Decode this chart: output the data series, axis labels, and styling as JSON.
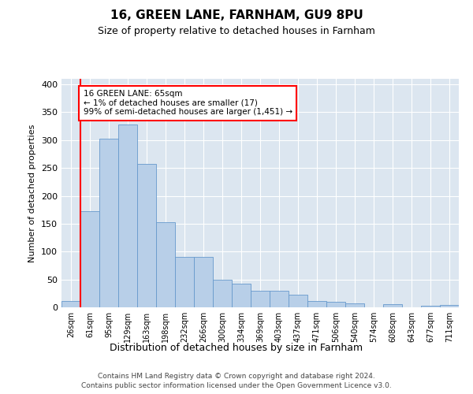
{
  "title1": "16, GREEN LANE, FARNHAM, GU9 8PU",
  "title2": "Size of property relative to detached houses in Farnham",
  "xlabel": "Distribution of detached houses by size in Farnham",
  "ylabel": "Number of detached properties",
  "categories": [
    "26sqm",
    "61sqm",
    "95sqm",
    "129sqm",
    "163sqm",
    "198sqm",
    "232sqm",
    "266sqm",
    "300sqm",
    "334sqm",
    "369sqm",
    "403sqm",
    "437sqm",
    "471sqm",
    "506sqm",
    "540sqm",
    "574sqm",
    "608sqm",
    "643sqm",
    "677sqm",
    "711sqm"
  ],
  "values": [
    12,
    172,
    302,
    328,
    258,
    152,
    90,
    90,
    50,
    42,
    30,
    30,
    22,
    11,
    10,
    7,
    0,
    5,
    0,
    3,
    4
  ],
  "bar_color": "#b8cfe8",
  "bar_edge_color": "#6699cc",
  "vline_x_index": 1,
  "vline_color": "red",
  "annotation_text": "16 GREEN LANE: 65sqm\n← 1% of detached houses are smaller (17)\n99% of semi-detached houses are larger (1,451) →",
  "annotation_box_color": "white",
  "annotation_box_edge_color": "red",
  "ylim": [
    0,
    410
  ],
  "yticks": [
    0,
    50,
    100,
    150,
    200,
    250,
    300,
    350,
    400
  ],
  "background_color": "#dce6f0",
  "footer1": "Contains HM Land Registry data © Crown copyright and database right 2024.",
  "footer2": "Contains public sector information licensed under the Open Government Licence v3.0."
}
